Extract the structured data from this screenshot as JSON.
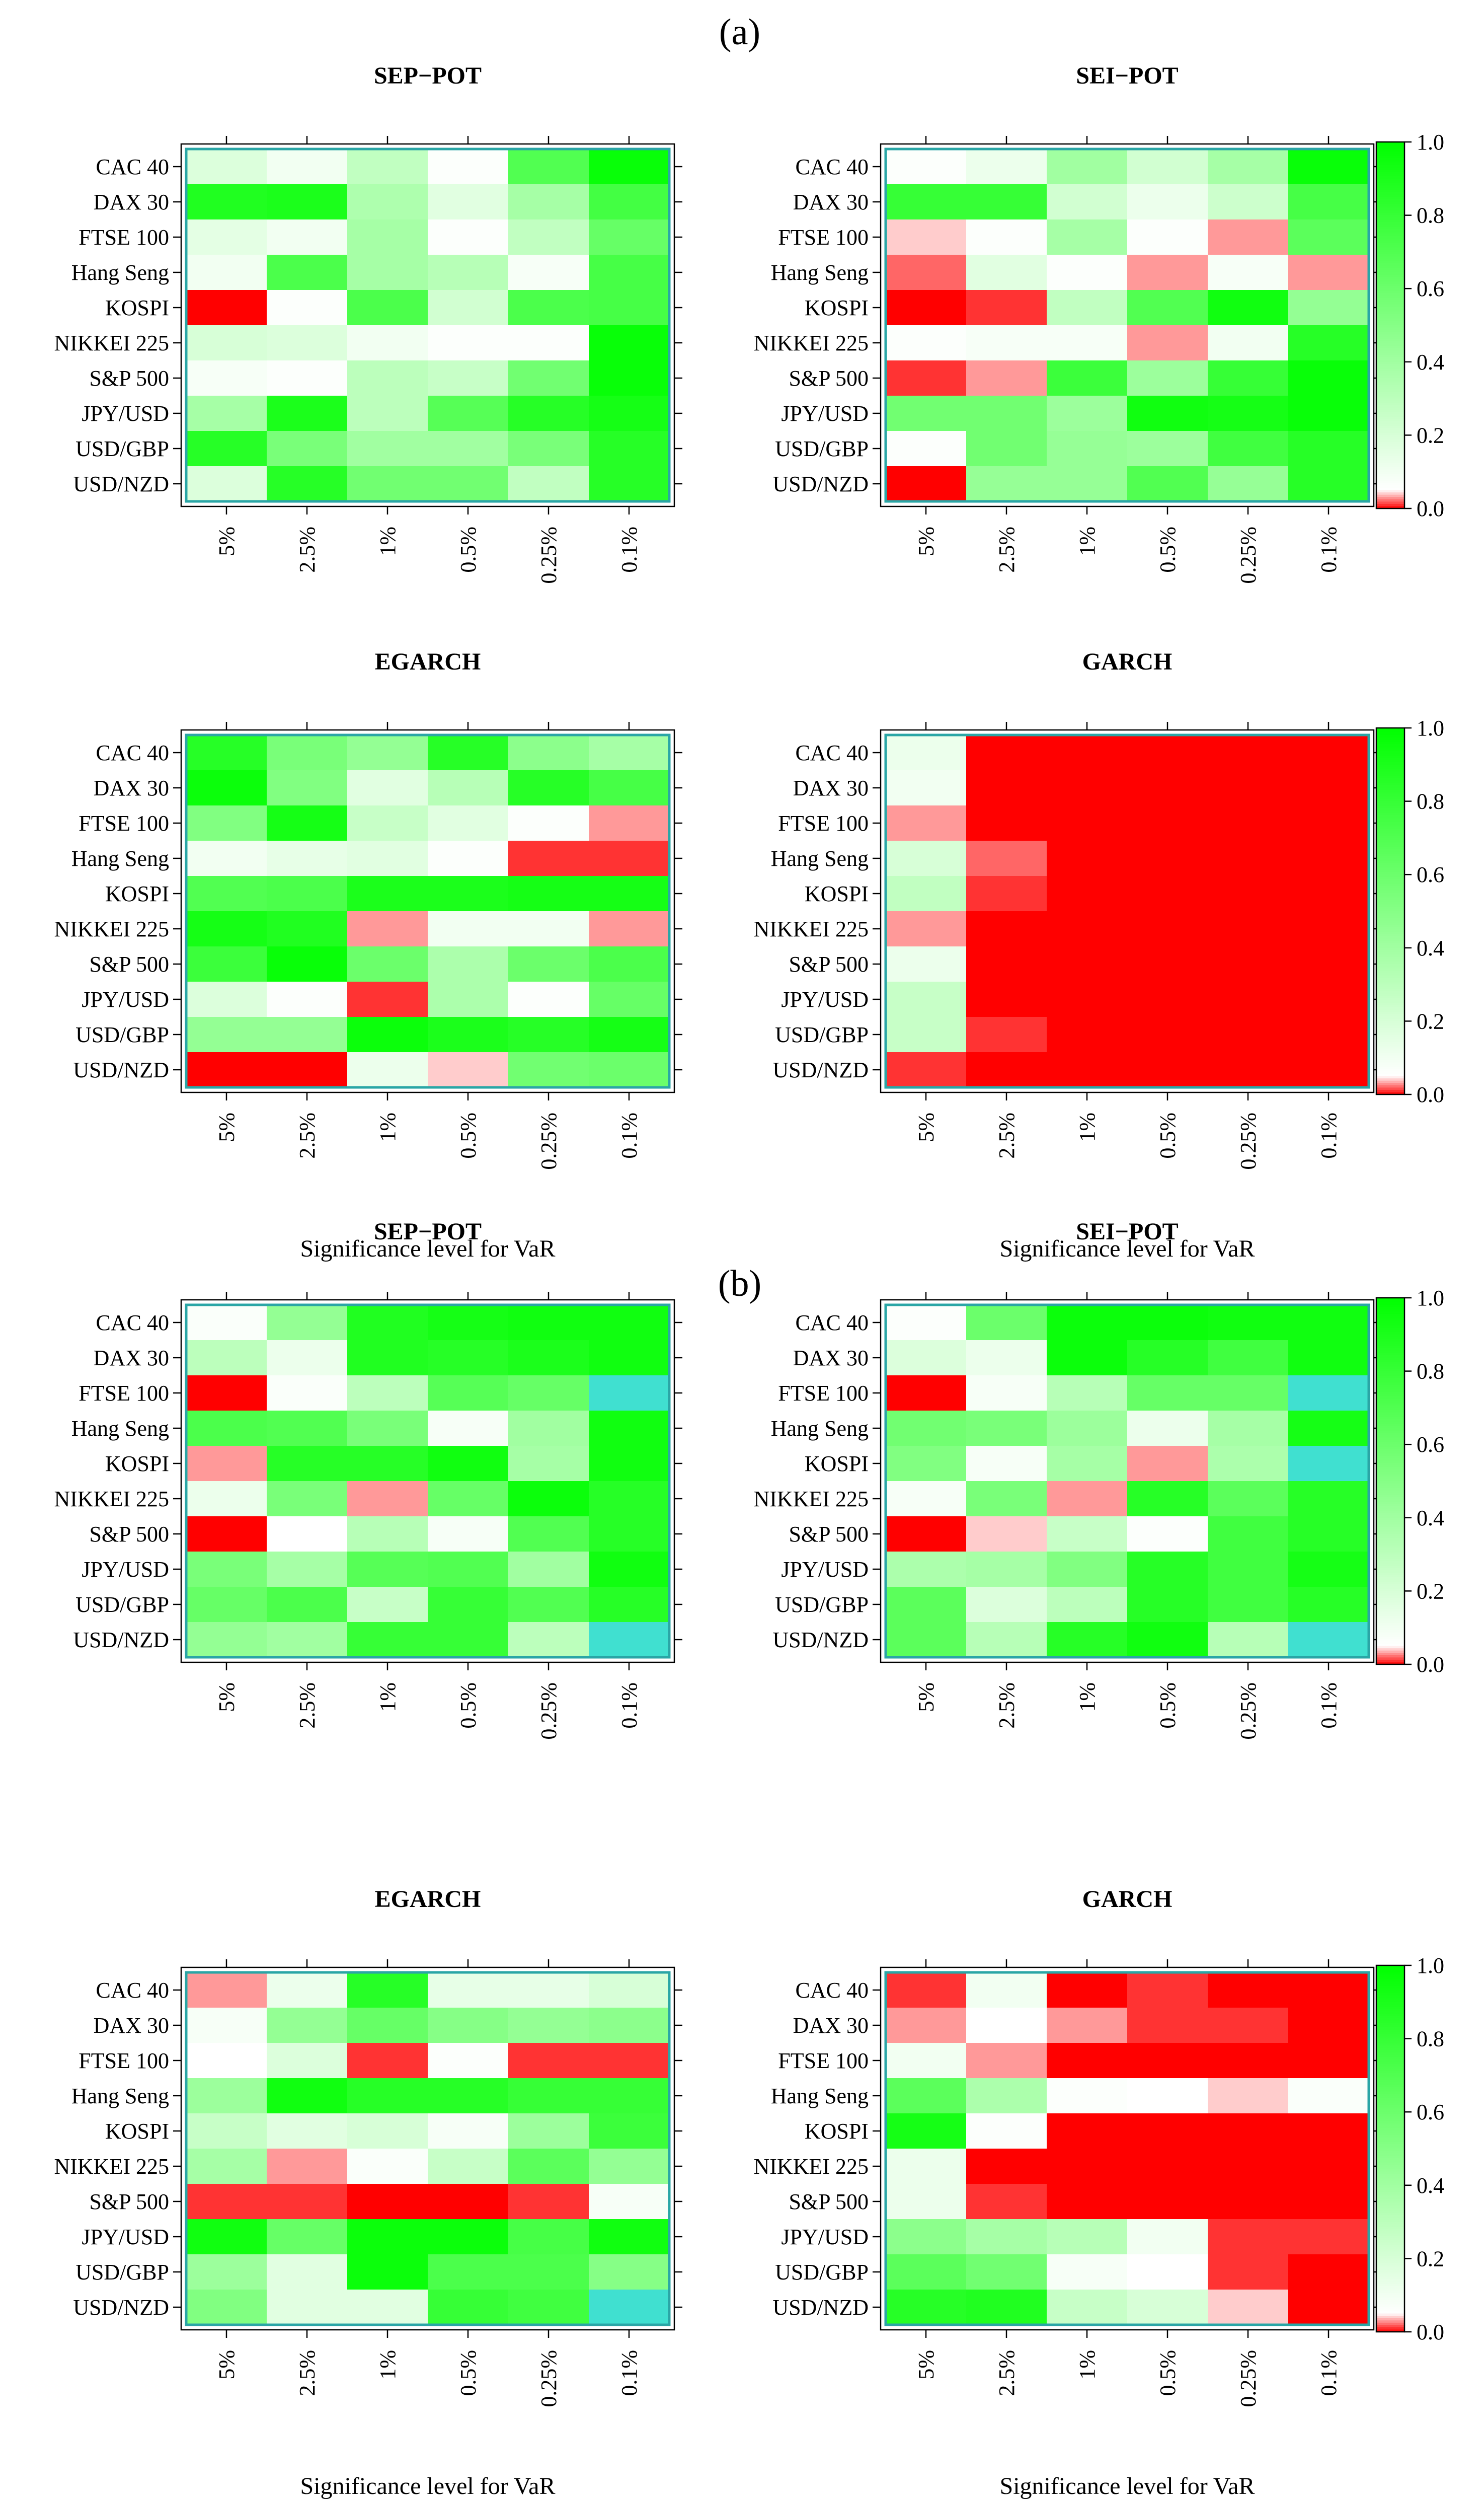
{
  "sections": [
    {
      "label": "(a)"
    },
    {
      "label": "(b)"
    }
  ],
  "xlabel": "Significance level for VaR",
  "colorbar": {
    "ticks": [
      "0.0",
      "0.2",
      "0.4",
      "0.6",
      "0.8",
      "1.0"
    ],
    "tick_values": [
      0,
      0.2,
      0.4,
      0.6,
      0.8,
      1.0
    ],
    "colors": {
      "low": "#ff0000",
      "mid": "#ffffff",
      "high": "#00ff00",
      "na": "#40e0d0",
      "frame": "#2aa6a6"
    }
  },
  "chart_data": [
    {
      "type": "heatmap",
      "section": "(a)",
      "title": "SEP−POT",
      "rows": [
        "CAC 40",
        "DAX 30",
        "FTSE 100",
        "Hang Seng",
        "KOSPI",
        "NIKKEI 225",
        "S&P 500",
        "JPY/USD",
        "USD/GBP",
        "USD/NZD"
      ],
      "columns": [
        "5%",
        "2.5%",
        "1%",
        "0.5%",
        "0.25%",
        "0.1%"
      ],
      "values": [
        [
          0.18,
          0.1,
          0.28,
          0.06,
          0.7,
          0.97
        ],
        [
          0.88,
          0.9,
          0.35,
          0.16,
          0.38,
          0.75
        ],
        [
          0.15,
          0.1,
          0.38,
          0.06,
          0.28,
          0.62
        ],
        [
          0.1,
          0.72,
          0.38,
          0.32,
          0.08,
          0.74
        ],
        [
          0.0,
          0.06,
          0.72,
          0.22,
          0.72,
          0.74
        ],
        [
          0.2,
          0.18,
          0.1,
          0.06,
          0.06,
          0.97
        ],
        [
          0.08,
          0.06,
          0.3,
          0.26,
          0.58,
          0.97
        ],
        [
          0.38,
          0.9,
          0.3,
          0.68,
          0.86,
          0.92
        ],
        [
          0.86,
          0.55,
          0.4,
          0.4,
          0.55,
          0.86
        ],
        [
          0.18,
          0.86,
          0.58,
          0.58,
          0.28,
          0.86
        ]
      ],
      "colorbar_range": [
        0,
        1
      ]
    },
    {
      "type": "heatmap",
      "section": "(a)",
      "title": "SEI−POT",
      "rows": [
        "CAC 40",
        "DAX 30",
        "FTSE 100",
        "Hang Seng",
        "KOSPI",
        "NIKKEI 225",
        "S&P 500",
        "JPY/USD",
        "USD/GBP",
        "USD/NZD"
      ],
      "columns": [
        "5%",
        "2.5%",
        "1%",
        "0.5%",
        "0.25%",
        "0.1%"
      ],
      "values": [
        [
          0.06,
          0.12,
          0.4,
          0.22,
          0.38,
          0.97
        ],
        [
          0.8,
          0.8,
          0.22,
          0.12,
          0.24,
          0.74
        ],
        [
          0.04,
          0.06,
          0.38,
          0.06,
          0.03,
          0.66
        ],
        [
          0.02,
          0.16,
          0.06,
          0.03,
          0.08,
          0.03
        ],
        [
          0.0,
          0.01,
          0.28,
          0.7,
          0.94,
          0.45
        ],
        [
          0.06,
          0.08,
          0.08,
          0.03,
          0.1,
          0.86
        ],
        [
          0.01,
          0.03,
          0.78,
          0.42,
          0.8,
          0.97
        ],
        [
          0.58,
          0.58,
          0.42,
          0.94,
          0.92,
          0.97
        ],
        [
          0.06,
          0.58,
          0.44,
          0.42,
          0.76,
          0.86
        ],
        [
          0.0,
          0.44,
          0.44,
          0.7,
          0.44,
          0.86
        ]
      ],
      "colorbar_range": [
        0,
        1
      ]
    },
    {
      "type": "heatmap",
      "section": "(a)",
      "title": "EGARCH",
      "rows": [
        "CAC 40",
        "DAX 30",
        "FTSE 100",
        "Hang Seng",
        "KOSPI",
        "NIKKEI 225",
        "S&P 500",
        "JPY/USD",
        "USD/GBP",
        "USD/NZD"
      ],
      "columns": [
        "5%",
        "2.5%",
        "1%",
        "0.5%",
        "0.25%",
        "0.1%"
      ],
      "values": [
        [
          0.86,
          0.55,
          0.45,
          0.86,
          0.48,
          0.38
        ],
        [
          0.96,
          0.52,
          0.16,
          0.32,
          0.86,
          0.74
        ],
        [
          0.52,
          0.92,
          0.26,
          0.16,
          0.06,
          0.03
        ],
        [
          0.1,
          0.14,
          0.16,
          0.06,
          0.01,
          0.01
        ],
        [
          0.7,
          0.72,
          0.9,
          0.9,
          0.92,
          0.92
        ],
        [
          0.92,
          0.88,
          0.03,
          0.1,
          0.1,
          0.03
        ],
        [
          0.78,
          0.97,
          0.6,
          0.36,
          0.6,
          0.72
        ],
        [
          0.18,
          0.06,
          0.01,
          0.36,
          0.06,
          0.62
        ],
        [
          0.45,
          0.45,
          0.96,
          0.9,
          0.86,
          0.92
        ],
        [
          0.0,
          0.0,
          0.12,
          0.04,
          0.58,
          0.6
        ]
      ],
      "colorbar_range": [
        0,
        1
      ]
    },
    {
      "type": "heatmap",
      "section": "(a)",
      "title": "GARCH",
      "rows": [
        "CAC 40",
        "DAX 30",
        "FTSE 100",
        "Hang Seng",
        "KOSPI",
        "NIKKEI 225",
        "S&P 500",
        "JPY/USD",
        "USD/GBP",
        "USD/NZD"
      ],
      "columns": [
        "5%",
        "2.5%",
        "1%",
        "0.5%",
        "0.25%",
        "0.1%"
      ],
      "values": [
        [
          0.12,
          0.0,
          0.0,
          0.0,
          0.0,
          0.0
        ],
        [
          0.1,
          0.0,
          0.0,
          0.0,
          0.0,
          0.0
        ],
        [
          0.03,
          0.0,
          0.0,
          0.0,
          0.0,
          0.0
        ],
        [
          0.2,
          0.02,
          0.0,
          0.0,
          0.0,
          0.0
        ],
        [
          0.28,
          0.01,
          0.0,
          0.0,
          0.0,
          0.0
        ],
        [
          0.03,
          0.0,
          0.0,
          0.0,
          0.0,
          0.0
        ],
        [
          0.12,
          0.0,
          0.0,
          0.0,
          0.0,
          0.0
        ],
        [
          0.26,
          0.0,
          0.0,
          0.0,
          0.0,
          0.0
        ],
        [
          0.26,
          0.01,
          0.0,
          0.0,
          0.0,
          0.0
        ],
        [
          0.01,
          0.0,
          0.0,
          0.0,
          0.0,
          0.0
        ]
      ],
      "colorbar_range": [
        0,
        1
      ]
    },
    {
      "type": "heatmap",
      "section": "(b)",
      "title": "SEP−POT",
      "rows": [
        "CAC 40",
        "DAX 30",
        "FTSE 100",
        "Hang Seng",
        "KOSPI",
        "NIKKEI 225",
        "S&P 500",
        "JPY/USD",
        "USD/GBP",
        "USD/NZD"
      ],
      "columns": [
        "5%",
        "2.5%",
        "1%",
        "0.5%",
        "0.25%",
        "0.1%"
      ],
      "values": [
        [
          0.07,
          0.45,
          0.88,
          0.92,
          0.94,
          0.94
        ],
        [
          0.3,
          0.12,
          0.88,
          0.86,
          0.9,
          0.94
        ],
        [
          0.0,
          0.07,
          0.3,
          0.68,
          0.62,
          null
        ],
        [
          0.72,
          0.7,
          0.55,
          0.08,
          0.4,
          0.94
        ],
        [
          0.03,
          0.86,
          0.86,
          0.94,
          0.38,
          0.94
        ],
        [
          0.12,
          0.55,
          0.03,
          0.62,
          0.96,
          0.86
        ],
        [
          0.0,
          0.05,
          0.32,
          0.08,
          0.7,
          0.86
        ],
        [
          0.55,
          0.38,
          0.68,
          0.7,
          0.4,
          0.94
        ],
        [
          0.62,
          0.72,
          0.26,
          0.8,
          0.7,
          0.86
        ],
        [
          0.45,
          0.4,
          0.8,
          0.8,
          0.3,
          null
        ]
      ],
      "colorbar_range": [
        0,
        1
      ]
    },
    {
      "type": "heatmap",
      "section": "(b)",
      "title": "SEI−POT",
      "rows": [
        "CAC 40",
        "DAX 30",
        "FTSE 100",
        "Hang Seng",
        "KOSPI",
        "NIKKEI 225",
        "S&P 500",
        "JPY/USD",
        "USD/GBP",
        "USD/NZD"
      ],
      "columns": [
        "5%",
        "2.5%",
        "1%",
        "0.5%",
        "0.25%",
        "0.1%"
      ],
      "values": [
        [
          0.06,
          0.6,
          0.96,
          0.96,
          0.94,
          0.94
        ],
        [
          0.18,
          0.12,
          0.96,
          0.86,
          0.76,
          0.94
        ],
        [
          0.0,
          0.08,
          0.32,
          0.62,
          0.62,
          null
        ],
        [
          0.58,
          0.55,
          0.42,
          0.12,
          0.38,
          0.92
        ],
        [
          0.52,
          0.08,
          0.38,
          0.03,
          0.36,
          null
        ],
        [
          0.08,
          0.55,
          0.03,
          0.86,
          0.66,
          0.86
        ],
        [
          0.0,
          0.04,
          0.26,
          0.06,
          0.76,
          0.86
        ],
        [
          0.36,
          0.38,
          0.52,
          0.86,
          0.76,
          0.92
        ],
        [
          0.66,
          0.18,
          0.3,
          0.86,
          0.76,
          0.86
        ],
        [
          0.66,
          0.32,
          0.86,
          0.94,
          0.32,
          null
        ]
      ],
      "colorbar_range": [
        0,
        1
      ]
    },
    {
      "type": "heatmap",
      "section": "(b)",
      "title": "EGARCH",
      "rows": [
        "CAC 40",
        "DAX 30",
        "FTSE 100",
        "Hang Seng",
        "KOSPI",
        "NIKKEI 225",
        "S&P 500",
        "JPY/USD",
        "USD/GBP",
        "USD/NZD"
      ],
      "columns": [
        "5%",
        "2.5%",
        "1%",
        "0.5%",
        "0.25%",
        "0.1%"
      ],
      "values": [
        [
          0.03,
          0.12,
          0.86,
          0.14,
          0.14,
          0.2
        ],
        [
          0.08,
          0.45,
          0.62,
          0.5,
          0.45,
          0.48
        ],
        [
          0.05,
          0.18,
          0.01,
          0.06,
          0.01,
          0.01
        ],
        [
          0.42,
          0.94,
          0.86,
          0.86,
          0.8,
          0.8
        ],
        [
          0.26,
          0.16,
          0.2,
          0.08,
          0.42,
          0.78
        ],
        [
          0.38,
          0.03,
          0.07,
          0.26,
          0.66,
          0.45
        ],
        [
          0.01,
          0.01,
          0.0,
          0.0,
          0.01,
          0.08
        ],
        [
          0.94,
          0.62,
          0.96,
          0.96,
          0.74,
          0.94
        ],
        [
          0.42,
          0.16,
          0.96,
          0.72,
          0.72,
          0.5
        ],
        [
          0.52,
          0.16,
          0.16,
          0.8,
          0.76,
          null
        ]
      ],
      "colorbar_range": [
        0,
        1
      ]
    },
    {
      "type": "heatmap",
      "section": "(b)",
      "title": "GARCH",
      "rows": [
        "CAC 40",
        "DAX 30",
        "FTSE 100",
        "Hang Seng",
        "KOSPI",
        "NIKKEI 225",
        "S&P 500",
        "JPY/USD",
        "USD/GBP",
        "USD/NZD"
      ],
      "columns": [
        "5%",
        "2.5%",
        "1%",
        "0.5%",
        "0.25%",
        "0.1%"
      ],
      "values": [
        [
          0.01,
          0.1,
          0.0,
          0.01,
          0.0,
          0.0
        ],
        [
          0.03,
          0.05,
          0.03,
          0.01,
          0.01,
          0.0
        ],
        [
          0.1,
          0.03,
          0.0,
          0.0,
          0.0,
          0.0
        ],
        [
          0.66,
          0.36,
          0.06,
          0.05,
          0.04,
          0.07
        ],
        [
          0.92,
          0.06,
          0.0,
          0.0,
          0.0,
          0.0
        ],
        [
          0.12,
          0.0,
          0.0,
          0.0,
          0.0,
          0.0
        ],
        [
          0.12,
          0.01,
          0.0,
          0.0,
          0.0,
          0.0
        ],
        [
          0.48,
          0.38,
          0.32,
          0.1,
          0.01,
          0.01
        ],
        [
          0.66,
          0.58,
          0.08,
          0.05,
          0.01,
          0.0
        ],
        [
          0.86,
          0.88,
          0.26,
          0.2,
          0.04,
          0.0
        ]
      ],
      "colorbar_range": [
        0,
        1
      ]
    }
  ]
}
